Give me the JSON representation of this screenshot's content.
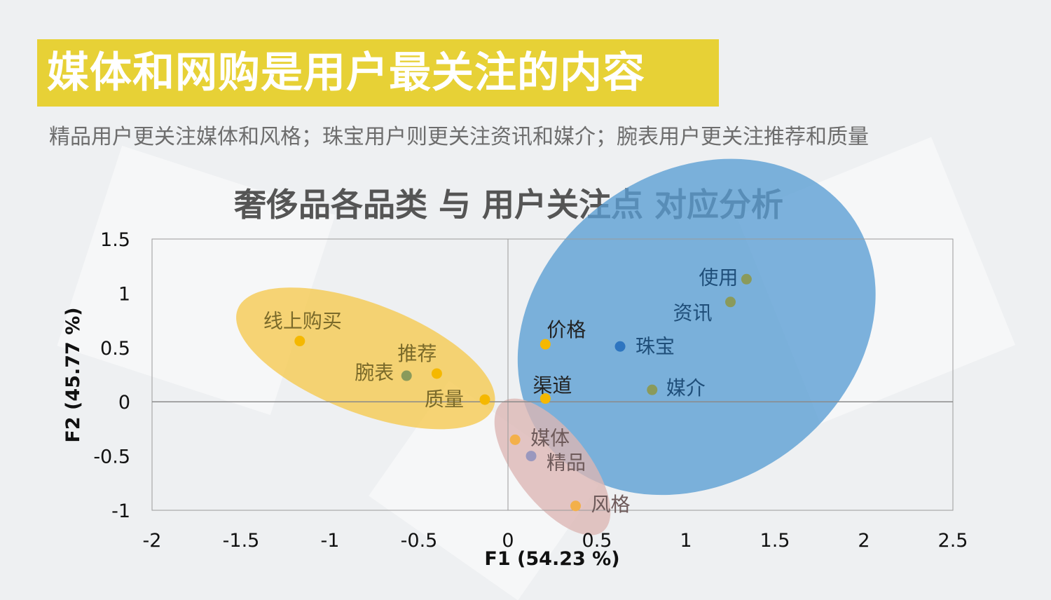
{
  "header": {
    "title": "媒体和网购是用户最关注的内容",
    "subtitle": "精品用户更关注媒体和风格；珠宝用户则更关注资讯和媒介；腕表用户更关注推荐和质量"
  },
  "colors": {
    "banner": "#e7d136",
    "yellow_point": "#f5b800",
    "blue_point": "#2e75c0",
    "green_point": "#8a9a5b",
    "purple_point": "#9a98be",
    "orange_point": "#f3b04a",
    "yellow_ellipse": "#f6c94e",
    "blue_ellipse": "#5a9ed4",
    "pink_ellipse": "#dcb6b4"
  },
  "chart_data": {
    "type": "scatter",
    "title": "奢侈品各品类 与 用户关注点 对应分析",
    "xlabel": "F1 (54.23 %)",
    "ylabel": "F2 (45.77 %)",
    "xlim": [
      -2,
      2.5
    ],
    "ylim": [
      -1,
      1.5
    ],
    "xticks": [
      "-2",
      "-1.5",
      "-1",
      "-0.5",
      "0",
      "0.5",
      "1",
      "1.5",
      "2",
      "2.5"
    ],
    "yticks": [
      "1.5",
      "1",
      "0.5",
      "0",
      "-0.5",
      "-1"
    ],
    "grid": false,
    "points": [
      {
        "label": "线上购买",
        "x": -1.17,
        "y": 0.56,
        "color": "#f5b800",
        "label_color": "#7a6a2a"
      },
      {
        "label": "推荐",
        "x": -0.4,
        "y": 0.26,
        "color": "#f5b800",
        "label_color": "#7a6a2a"
      },
      {
        "label": "腕表",
        "x": -0.57,
        "y": 0.24,
        "color": "#8a9a5b",
        "label_color": "#7a6a2a"
      },
      {
        "label": "质量",
        "x": -0.13,
        "y": 0.02,
        "color": "#f5b800",
        "label_color": "#7a6a2a"
      },
      {
        "label": "价格",
        "x": 0.21,
        "y": 0.53,
        "color": "#f5b800",
        "label_color": "#222222"
      },
      {
        "label": "渠道",
        "x": 0.21,
        "y": 0.03,
        "color": "#f5b800",
        "label_color": "#222222"
      },
      {
        "label": "珠宝",
        "x": 0.63,
        "y": 0.51,
        "color": "#2e75c0",
        "label_color": "#1f4e79"
      },
      {
        "label": "使用",
        "x": 1.34,
        "y": 1.13,
        "color": "#8a9a5b",
        "label_color": "#1f4e79"
      },
      {
        "label": "资讯",
        "x": 1.25,
        "y": 0.92,
        "color": "#8a9a5b",
        "label_color": "#1f4e79"
      },
      {
        "label": "媒介",
        "x": 0.81,
        "y": 0.11,
        "color": "#8a9a5b",
        "label_color": "#1f4e79"
      },
      {
        "label": "媒体",
        "x": 0.04,
        "y": -0.35,
        "color": "#f3b04a",
        "label_color": "#6e5a5a"
      },
      {
        "label": "精品",
        "x": 0.13,
        "y": -0.5,
        "color": "#9a98be",
        "label_color": "#6e5a5a"
      },
      {
        "label": "风格",
        "x": 0.38,
        "y": -0.96,
        "color": "#f3b04a",
        "label_color": "#6e5a5a"
      }
    ],
    "clusters": [
      {
        "cx": -0.8,
        "cy": 0.4,
        "rx": 0.77,
        "ry": 0.18,
        "rotate": 21,
        "color": "#f6c94e"
      },
      {
        "cx": 1.06,
        "cy": 0.69,
        "rx": 1.07,
        "ry": 0.51,
        "rotate": -36,
        "color": "#5a9ed4"
      },
      {
        "cx": 0.25,
        "cy": -0.6,
        "rx": 0.46,
        "ry": 0.12,
        "rotate": 52,
        "color": "#dcb6b4"
      }
    ]
  }
}
